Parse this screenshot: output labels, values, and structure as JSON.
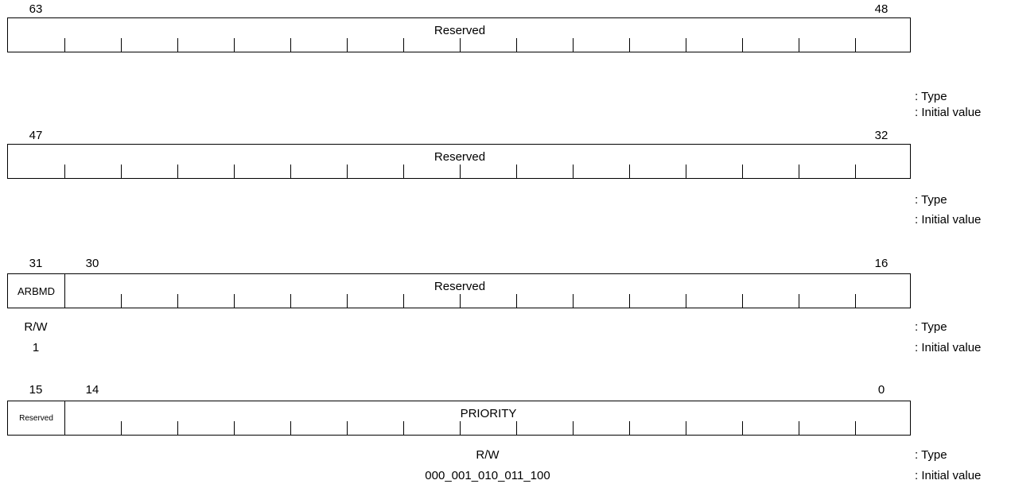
{
  "legend": {
    "type": ": Type",
    "initial": ": Initial value"
  },
  "rows": [
    {
      "hi": "63",
      "lo": "48",
      "fields": [
        {
          "name": "Reserved"
        }
      ]
    },
    {
      "hi": "47",
      "lo": "32",
      "fields": [
        {
          "name": "Reserved"
        }
      ]
    },
    {
      "hi": "31",
      "mid": "30",
      "lo": "16",
      "fields": [
        {
          "name": "ARBMD",
          "type": "R/W",
          "initial": "1"
        },
        {
          "name": "Reserved"
        }
      ]
    },
    {
      "hi": "15",
      "mid": "14",
      "lo": "0",
      "fields": [
        {
          "name": "Reserved"
        },
        {
          "name": "PRIORITY",
          "type": "R/W",
          "initial": "000_001_010_011_100"
        }
      ]
    }
  ]
}
